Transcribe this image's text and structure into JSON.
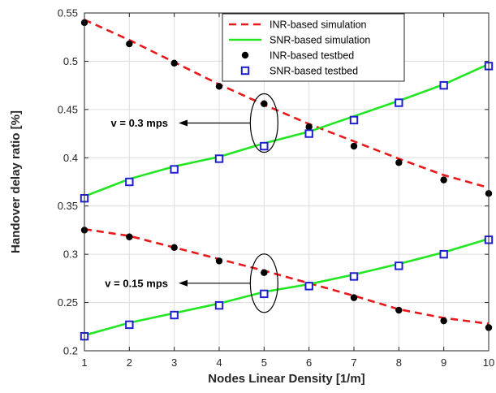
{
  "chart_data": {
    "type": "line",
    "xlabel": "Nodes Linear Density [1/m]",
    "ylabel": "Handover delay ratio [%]",
    "xlim": [
      1,
      10
    ],
    "ylim": [
      0.2,
      0.55
    ],
    "x": [
      1,
      2,
      3,
      4,
      5,
      6,
      7,
      8,
      9,
      10
    ],
    "x_ticks": [
      "1",
      "2",
      "3",
      "4",
      "5",
      "6",
      "7",
      "8",
      "9",
      "10"
    ],
    "y_ticks": [
      "0.2",
      "0.25",
      "0.3",
      "0.35",
      "0.4",
      "0.45",
      "0.5",
      "0.55"
    ],
    "grid": true,
    "legend_position": "top-right",
    "legend": [
      "INR-based simulation",
      "SNR-based simulation",
      "INR-based testbed",
      "SNR-based testbed"
    ],
    "series": [
      {
        "name": "INR-based simulation",
        "group": "v = 0.3 mps",
        "style": "dashed",
        "color": "#e8191b",
        "values": [
          0.543,
          0.522,
          0.499,
          0.476,
          0.455,
          0.435,
          0.417,
          0.399,
          0.382,
          0.369
        ]
      },
      {
        "name": "SNR-based simulation",
        "group": "v = 0.3 mps",
        "style": "solid",
        "color": "#22e622",
        "values": [
          0.36,
          0.378,
          0.391,
          0.401,
          0.415,
          0.427,
          0.443,
          0.459,
          0.476,
          0.497
        ]
      },
      {
        "name": "INR-based testbed",
        "group": "v = 0.3 mps",
        "style": "dot",
        "color": "#000000",
        "values": [
          0.54,
          0.518,
          0.498,
          0.474,
          0.456,
          0.432,
          0.412,
          0.395,
          0.377,
          0.363
        ]
      },
      {
        "name": "SNR-based testbed",
        "group": "v = 0.3 mps",
        "style": "square",
        "color": "#1f1fd1",
        "values": [
          0.358,
          0.375,
          0.388,
          0.399,
          0.412,
          0.425,
          0.439,
          0.457,
          0.475,
          0.495
        ]
      },
      {
        "name": "INR-based simulation",
        "group": "v = 0.15 mps",
        "style": "dashed",
        "color": "#e8191b",
        "values": [
          0.326,
          0.319,
          0.307,
          0.295,
          0.283,
          0.27,
          0.257,
          0.243,
          0.234,
          0.228
        ]
      },
      {
        "name": "SNR-based simulation",
        "group": "v = 0.15 mps",
        "style": "solid",
        "color": "#22e622",
        "values": [
          0.216,
          0.229,
          0.239,
          0.249,
          0.261,
          0.269,
          0.279,
          0.29,
          0.302,
          0.316
        ]
      },
      {
        "name": "INR-based testbed",
        "group": "v = 0.15 mps",
        "style": "dot",
        "color": "#000000",
        "values": [
          0.325,
          0.318,
          0.307,
          0.293,
          0.281,
          0.268,
          0.255,
          0.242,
          0.231,
          0.224
        ]
      },
      {
        "name": "SNR-based testbed",
        "group": "v = 0.15 mps",
        "style": "square",
        "color": "#1f1fd1",
        "values": [
          0.215,
          0.227,
          0.237,
          0.247,
          0.259,
          0.267,
          0.277,
          0.288,
          0.3,
          0.315
        ]
      }
    ],
    "annotations": [
      {
        "text": "v = 0.3 mps",
        "points_to": [
          5,
          0.436
        ]
      },
      {
        "text": "v = 0.15 mps",
        "points_to": [
          5,
          0.27
        ]
      }
    ]
  }
}
